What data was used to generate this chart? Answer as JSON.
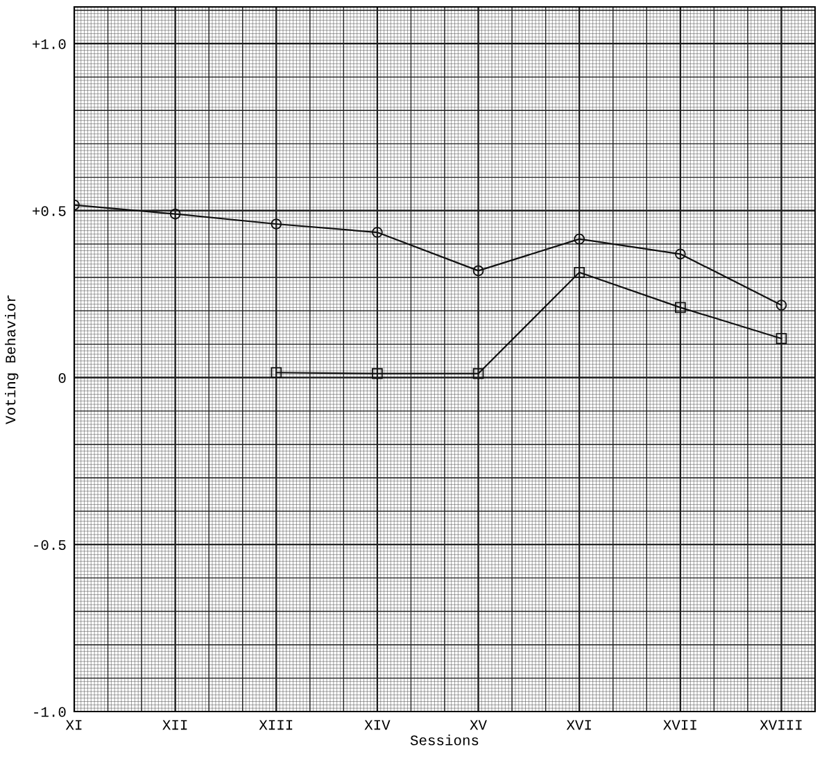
{
  "chart_data": {
    "type": "line",
    "xlabel": "Sessions",
    "ylabel": "Voting Behavior",
    "categories": [
      "XI",
      "XII",
      "XIII",
      "XIV",
      "XV",
      "XVI",
      "XVII",
      "XVIII"
    ],
    "series": [
      {
        "color": "#111111",
        "marker": "circle",
        "values": [
          0.517,
          0.49,
          0.46,
          0.435,
          0.32,
          0.415,
          0.37,
          0.217
        ]
      },
      {
        "color": "#111111",
        "marker": "square",
        "values": [
          null,
          null,
          0.015,
          0.012,
          0.012,
          0.315,
          0.21,
          0.117
        ]
      }
    ],
    "ylim": [
      -1.0,
      1.11
    ],
    "yticks": [
      {
        "value": 1.0,
        "label": "+1.0"
      },
      {
        "value": 0.5,
        "label": "+0.5"
      },
      {
        "value": 0,
        "label": "0"
      },
      {
        "value": -0.5,
        "label": "-0.5"
      },
      {
        "value": -1.0,
        "label": "-1.0"
      }
    ],
    "grid": true,
    "line_style": "solid"
  }
}
